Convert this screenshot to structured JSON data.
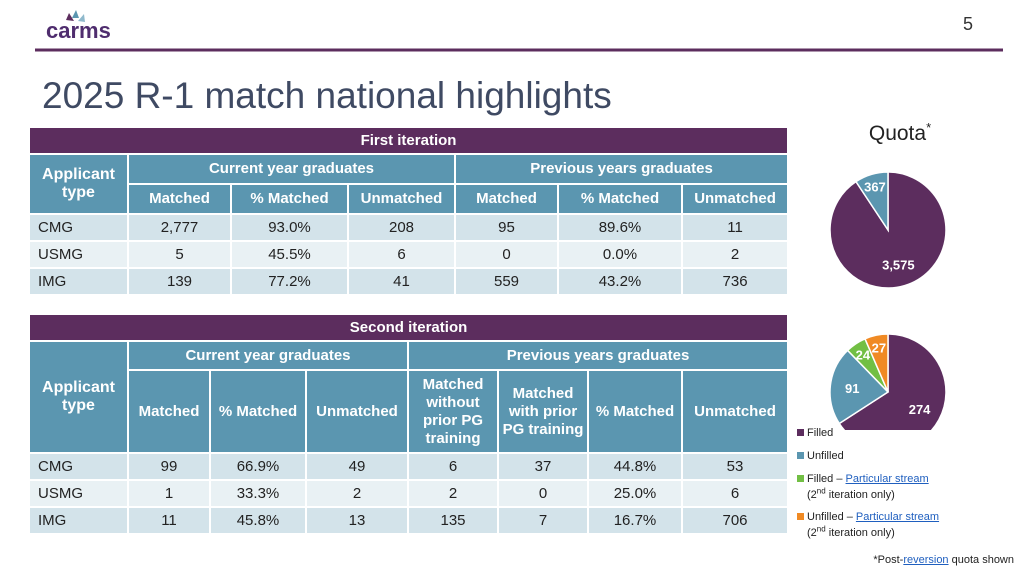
{
  "logo": "carms",
  "page_number": "5",
  "title": "2025 R-1 match national highlights",
  "table1": {
    "title": "First iteration",
    "applicant": "Applicant type",
    "groups": [
      "Current year graduates",
      "Previous years graduates"
    ],
    "columns": [
      "Matched",
      "% Matched",
      "Unmatched",
      "Matched",
      "% Matched",
      "Unmatched"
    ],
    "rows": [
      [
        "CMG",
        "2,777",
        "93.0%",
        "208",
        "95",
        "89.6%",
        "11"
      ],
      [
        "USMG",
        "5",
        "45.5%",
        "6",
        "0",
        "0.0%",
        "2"
      ],
      [
        "IMG",
        "139",
        "77.2%",
        "41",
        "559",
        "43.2%",
        "736"
      ]
    ]
  },
  "table2": {
    "title": "Second iteration",
    "applicant": "Applicant type",
    "groups": [
      "Current year graduates",
      "Previous years graduates"
    ],
    "columns": [
      "Matched",
      "% Matched",
      "Unmatched",
      "Matched without prior PG training",
      "Matched with prior PG training",
      "% Matched",
      "Unmatched"
    ],
    "rows": [
      [
        "CMG",
        "99",
        "66.9%",
        "49",
        "6",
        "37",
        "44.8%",
        "53"
      ],
      [
        "USMG",
        "1",
        "33.3%",
        "2",
        "2",
        "0",
        "25.0%",
        "6"
      ],
      [
        "IMG",
        "11",
        "45.8%",
        "13",
        "135",
        "7",
        "16.7%",
        "706"
      ]
    ]
  },
  "chart_data": [
    {
      "type": "pie",
      "title": "Quota",
      "title_mark": "*",
      "values": [
        3575,
        367
      ],
      "value_labels": [
        "3,575",
        "367"
      ],
      "colors": [
        "#5c2d5e",
        "#5b96b0"
      ]
    },
    {
      "type": "pie",
      "values": [
        274,
        91,
        24,
        27
      ],
      "colors": [
        "#5c2d5e",
        "#5b96b0",
        "#72bf44",
        "#f08a24"
      ]
    }
  ],
  "legend": [
    {
      "text": "Filled",
      "color": "#5c2d5e"
    },
    {
      "text": "Unfilled",
      "color": "#5b96b0"
    },
    {
      "text": "Filled – ",
      "link": "Particular stream",
      "note": "(2",
      "sup": "nd",
      "note_end": " iteration only)",
      "color": "#72bf44"
    },
    {
      "text": "Unfilled – ",
      "link": "Particular stream",
      "note": "(2",
      "sup": "nd",
      "note_end": " iteration only)",
      "color": "#f08a24"
    }
  ],
  "footnote": {
    "text": "*Post-",
    "link": "reversion",
    "text_end": " quota shown"
  }
}
